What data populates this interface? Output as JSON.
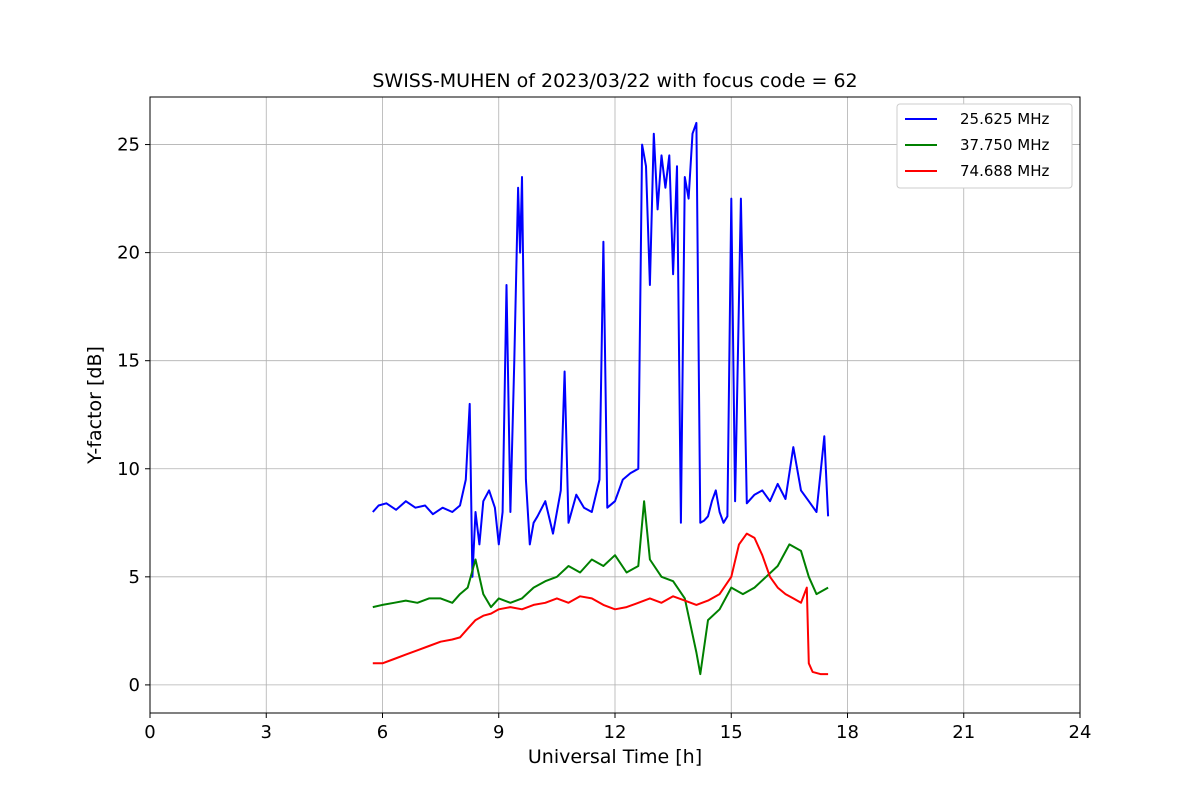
{
  "chart_data": {
    "type": "line",
    "title": "SWISS-MUHEN of 2023/03/22 with focus code = 62",
    "xlabel": "Universal Time [h]",
    "ylabel": "Y-factor [dB]",
    "xlim": [
      0,
      24
    ],
    "ylim": [
      -1.3,
      27.2
    ],
    "xticks": [
      0,
      3,
      6,
      9,
      12,
      15,
      18,
      21,
      24
    ],
    "yticks": [
      0,
      5,
      10,
      15,
      20,
      25
    ],
    "grid": true,
    "legend_position": "top-right",
    "series": [
      {
        "name": "25.625 MHz",
        "color": "#0000ff",
        "x": [
          5.75,
          5.9,
          6.1,
          6.35,
          6.6,
          6.85,
          7.1,
          7.3,
          7.55,
          7.8,
          8.0,
          8.15,
          8.25,
          8.32,
          8.4,
          8.5,
          8.6,
          8.75,
          8.9,
          9.0,
          9.1,
          9.2,
          9.3,
          9.4,
          9.5,
          9.55,
          9.6,
          9.7,
          9.8,
          9.9,
          10.0,
          10.2,
          10.4,
          10.6,
          10.7,
          10.8,
          11.0,
          11.2,
          11.4,
          11.6,
          11.7,
          11.8,
          12.0,
          12.2,
          12.4,
          12.6,
          12.7,
          12.8,
          12.9,
          13.0,
          13.1,
          13.2,
          13.3,
          13.4,
          13.5,
          13.6,
          13.7,
          13.8,
          13.9,
          14.0,
          14.1,
          14.2,
          14.3,
          14.4,
          14.5,
          14.6,
          14.7,
          14.8,
          14.9,
          15.0,
          15.1,
          15.25,
          15.4,
          15.6,
          15.8,
          16.0,
          16.2,
          16.4,
          16.6,
          16.8,
          17.0,
          17.2,
          17.4,
          17.5
        ],
        "y": [
          8.0,
          8.3,
          8.4,
          8.1,
          8.5,
          8.2,
          8.3,
          7.9,
          8.2,
          8.0,
          8.3,
          9.5,
          13.0,
          5.0,
          8.0,
          6.5,
          8.5,
          9.0,
          8.2,
          6.5,
          8.0,
          18.5,
          8.0,
          15.0,
          23.0,
          20.0,
          23.5,
          9.5,
          6.5,
          7.5,
          7.8,
          8.5,
          7.0,
          9.0,
          14.5,
          7.5,
          8.8,
          8.2,
          8.0,
          9.5,
          20.5,
          8.2,
          8.5,
          9.5,
          9.8,
          10.0,
          25.0,
          24.0,
          18.5,
          25.5,
          22.0,
          24.5,
          23.0,
          24.5,
          19.0,
          24.0,
          7.5,
          23.5,
          22.5,
          25.5,
          26.0,
          7.5,
          7.6,
          7.8,
          8.5,
          9.0,
          8.0,
          7.5,
          7.8,
          22.5,
          8.5,
          22.5,
          8.4,
          8.8,
          9.0,
          8.5,
          9.3,
          8.6,
          11.0,
          9.0,
          8.5,
          8.0,
          11.5,
          7.8
        ]
      },
      {
        "name": "37.750 MHz",
        "color": "#008000",
        "x": [
          5.75,
          6.0,
          6.3,
          6.6,
          6.9,
          7.2,
          7.5,
          7.8,
          8.0,
          8.2,
          8.4,
          8.6,
          8.8,
          9.0,
          9.3,
          9.6,
          9.9,
          10.2,
          10.5,
          10.8,
          11.1,
          11.4,
          11.7,
          12.0,
          12.3,
          12.6,
          12.75,
          12.9,
          13.2,
          13.5,
          13.8,
          14.1,
          14.2,
          14.4,
          14.7,
          15.0,
          15.3,
          15.6,
          15.9,
          16.2,
          16.5,
          16.8,
          17.0,
          17.2,
          17.5
        ],
        "y": [
          3.6,
          3.7,
          3.8,
          3.9,
          3.8,
          4.0,
          4.0,
          3.8,
          4.2,
          4.5,
          5.8,
          4.2,
          3.6,
          4.0,
          3.8,
          4.0,
          4.5,
          4.8,
          5.0,
          5.5,
          5.2,
          5.8,
          5.5,
          6.0,
          5.2,
          5.5,
          8.5,
          5.8,
          5.0,
          4.8,
          4.0,
          1.5,
          0.5,
          3.0,
          3.5,
          4.5,
          4.2,
          4.5,
          5.0,
          5.5,
          6.5,
          6.2,
          5.0,
          4.2,
          4.5
        ]
      },
      {
        "name": "74.688 MHz",
        "color": "#ff0000",
        "x": [
          5.75,
          6.0,
          6.3,
          6.6,
          6.9,
          7.2,
          7.5,
          7.8,
          8.0,
          8.2,
          8.4,
          8.6,
          8.8,
          9.0,
          9.3,
          9.6,
          9.9,
          10.2,
          10.5,
          10.8,
          11.1,
          11.4,
          11.7,
          12.0,
          12.3,
          12.6,
          12.9,
          13.2,
          13.5,
          13.8,
          14.1,
          14.4,
          14.7,
          15.0,
          15.2,
          15.4,
          15.6,
          15.8,
          16.0,
          16.2,
          16.4,
          16.6,
          16.8,
          16.95,
          17.0,
          17.1,
          17.3,
          17.5
        ],
        "y": [
          1.0,
          1.0,
          1.2,
          1.4,
          1.6,
          1.8,
          2.0,
          2.1,
          2.2,
          2.6,
          3.0,
          3.2,
          3.3,
          3.5,
          3.6,
          3.5,
          3.7,
          3.8,
          4.0,
          3.8,
          4.1,
          4.0,
          3.7,
          3.5,
          3.6,
          3.8,
          4.0,
          3.8,
          4.1,
          3.9,
          3.7,
          3.9,
          4.2,
          5.0,
          6.5,
          7.0,
          6.8,
          6.0,
          5.0,
          4.5,
          4.2,
          4.0,
          3.8,
          4.5,
          1.0,
          0.6,
          0.5,
          0.5
        ]
      }
    ]
  }
}
